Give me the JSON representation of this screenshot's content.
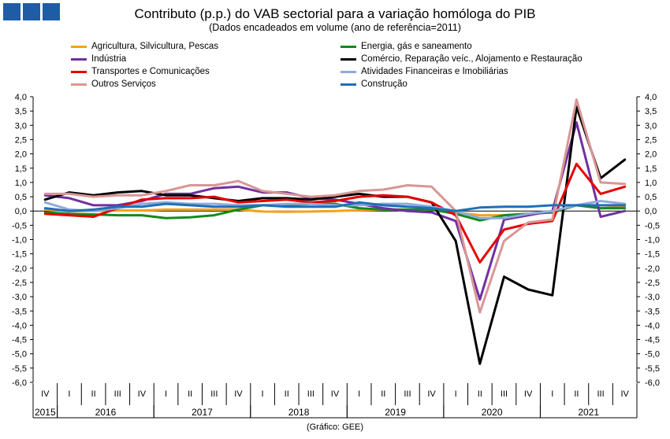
{
  "logo_icon": "three-blue-squares-logo",
  "source": "(Gráfico: GEE)",
  "chart_data": {
    "type": "line",
    "title": "Contributo (p.p.) do VAB sectorial para a variação homóloga do PIB",
    "subtitle": "(Dados encadeados em volume  (ano de referência=2011)",
    "quarters": [
      "IV",
      "I",
      "II",
      "III",
      "IV",
      "I",
      "II",
      "III",
      "IV",
      "I",
      "II",
      "III",
      "IV",
      "I",
      "II",
      "III",
      "IV",
      "I",
      "II",
      "III",
      "IV",
      "I",
      "II",
      "III",
      "IV"
    ],
    "years": [
      {
        "label": "2015",
        "start": 0,
        "end": 0
      },
      {
        "label": "2016",
        "start": 1,
        "end": 4
      },
      {
        "label": "2017",
        "start": 5,
        "end": 8
      },
      {
        "label": "2018",
        "start": 9,
        "end": 12
      },
      {
        "label": "2019",
        "start": 13,
        "end": 16
      },
      {
        "label": "2020",
        "start": 17,
        "end": 20
      },
      {
        "label": "2021",
        "start": 21,
        "end": 24
      }
    ],
    "ylim": [
      -6.0,
      4.0
    ],
    "yticks": [
      "4,0",
      "3,5",
      "3,0",
      "2,5",
      "2,0",
      "1,5",
      "1,0",
      "0,5",
      "0,0",
      "-0,5",
      "-1,0",
      "-1,5",
      "-2,0",
      "-2,5",
      "-3,0",
      "-3,5",
      "-4,0",
      "-4,5",
      "-5,0",
      "-5,5",
      "-6,0"
    ],
    "grid": false,
    "series": [
      {
        "name": "Agricultura, Silvicultura, Pescas",
        "color": "#f4a21a",
        "values": [
          0.05,
          0.0,
          0.0,
          0.02,
          0.02,
          0.05,
          0.05,
          0.05,
          0.05,
          -0.02,
          -0.03,
          -0.02,
          0.0,
          0.03,
          0.05,
          0.05,
          0.05,
          -0.05,
          -0.15,
          -0.15,
          -0.1,
          -0.05,
          0.2,
          0.1,
          0.15
        ]
      },
      {
        "name": "Energia, gás e saneamento",
        "color": "#128a1b",
        "values": [
          -0.05,
          -0.1,
          -0.12,
          -0.15,
          -0.15,
          -0.25,
          -0.22,
          -0.15,
          0.05,
          0.2,
          0.2,
          0.25,
          0.25,
          0.1,
          0.05,
          0.05,
          0.05,
          -0.1,
          -0.33,
          -0.15,
          -0.1,
          -0.05,
          0.2,
          0.1,
          0.1
        ]
      },
      {
        "name": "Indústria",
        "color": "#7030a0",
        "values": [
          0.55,
          0.45,
          0.2,
          0.2,
          0.35,
          0.6,
          0.6,
          0.8,
          0.85,
          0.65,
          0.65,
          0.45,
          0.4,
          0.25,
          0.1,
          0.0,
          -0.05,
          -0.35,
          -3.1,
          -0.3,
          -0.15,
          0.0,
          3.1,
          -0.2,
          0.0
        ]
      },
      {
        "name": "Comércio, Reparação veíc., Alojamento e Restauração",
        "color": "#000000",
        "values": [
          0.4,
          0.65,
          0.55,
          0.65,
          0.7,
          0.55,
          0.55,
          0.45,
          0.35,
          0.45,
          0.45,
          0.4,
          0.5,
          0.6,
          0.5,
          0.5,
          0.3,
          -1.05,
          -5.35,
          -2.3,
          -2.75,
          -2.95,
          3.65,
          1.15,
          1.8
        ]
      },
      {
        "name": "Transportes e Comunicações",
        "color": "#e60000",
        "values": [
          -0.1,
          -0.15,
          -0.2,
          0.1,
          0.4,
          0.45,
          0.45,
          0.5,
          0.3,
          0.35,
          0.4,
          0.3,
          0.35,
          0.5,
          0.55,
          0.5,
          0.3,
          -0.15,
          -1.8,
          -0.65,
          -0.45,
          -0.35,
          1.65,
          0.6,
          0.85
        ]
      },
      {
        "name": "Atividades Financeiras e Imobiliárias",
        "color": "#8eaadc",
        "values": [
          0.3,
          0.05,
          0.0,
          0.1,
          0.25,
          0.3,
          0.25,
          0.25,
          0.2,
          0.2,
          0.25,
          0.25,
          0.2,
          0.2,
          0.25,
          0.25,
          0.15,
          0.0,
          -0.25,
          -0.25,
          -0.1,
          0.0,
          0.2,
          0.35,
          0.25
        ]
      },
      {
        "name": "Outros Serviços",
        "color": "#d99694",
        "values": [
          0.6,
          0.6,
          0.5,
          0.55,
          0.55,
          0.7,
          0.9,
          0.9,
          1.05,
          0.7,
          0.6,
          0.5,
          0.55,
          0.7,
          0.75,
          0.9,
          0.85,
          0.0,
          -3.55,
          -1.05,
          -0.4,
          -0.3,
          3.9,
          1.0,
          0.95
        ]
      },
      {
        "name": "Construção",
        "color": "#1f6fb8",
        "values": [
          0.1,
          0.0,
          0.05,
          0.15,
          0.15,
          0.25,
          0.2,
          0.15,
          0.15,
          0.2,
          0.15,
          0.15,
          0.15,
          0.3,
          0.2,
          0.15,
          0.1,
          0.0,
          0.12,
          0.15,
          0.15,
          0.2,
          0.2,
          0.2,
          0.2
        ]
      }
    ]
  }
}
